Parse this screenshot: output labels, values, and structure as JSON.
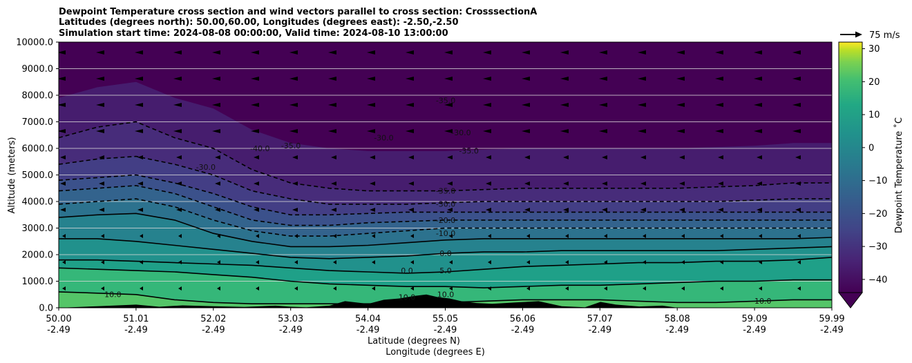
{
  "chart_data": {
    "type": "heatmap",
    "title_lines": [
      "Dewpoint Temperature cross section and wind vectors parallel to cross section: CrosssectionA",
      "Latitudes (degrees north): 50.00,60.00, Longitudes (degrees east): -2.50,-2.50",
      "Simulation start time: 2024-08-08 00:00:00, Valid time: 2024-08-10 13:00:00"
    ],
    "ylabel": "Altitude (meters)",
    "xlabel_lat": "Latitude (degrees N)",
    "xlabel_lon": "Longitude (degrees E)",
    "ylim": [
      0,
      10000
    ],
    "y_ticks": [
      "0.0",
      "1000.0",
      "2000.0",
      "3000.0",
      "4000.0",
      "5000.0",
      "6000.0",
      "7000.0",
      "8000.0",
      "9000.0",
      "10000.0"
    ],
    "x_ticks_lat": [
      "50.00",
      "51.01",
      "52.02",
      "53.03",
      "54.04",
      "55.05",
      "56.06",
      "57.07",
      "58.08",
      "59.09",
      "59.99"
    ],
    "x_ticks_lon": [
      "-2.49",
      "-2.49",
      "-2.49",
      "-2.49",
      "-2.49",
      "-2.49",
      "-2.49",
      "-2.49",
      "-2.49",
      "-2.49",
      "-2.49"
    ],
    "xlim": [
      50.0,
      59.99
    ],
    "colorbar": {
      "label": "Dewpoint Temperature ˚C",
      "range": [
        -44,
        32
      ],
      "ticks": [
        "30",
        "20",
        "10",
        "0",
        "−10",
        "−20",
        "−30",
        "−40"
      ],
      "tick_values": [
        30,
        20,
        10,
        0,
        -10,
        -20,
        -30,
        -40
      ],
      "extend": "min",
      "colormap": "viridis"
    },
    "wind_reference": {
      "label": "75 m/s"
    },
    "contour_labels": [
      {
        "text": "-35.0",
        "lat": 55.0,
        "alt": 7700
      },
      {
        "text": "-30.0",
        "lat": 55.2,
        "alt": 6500
      },
      {
        "text": "-40.0",
        "lat": 52.6,
        "alt": 5900
      },
      {
        "text": "-35.0",
        "lat": 53.0,
        "alt": 6000
      },
      {
        "text": "-30.0",
        "lat": 51.9,
        "alt": 5200
      },
      {
        "text": "-30.0",
        "lat": 54.2,
        "alt": 6300
      },
      {
        "text": "-35.0",
        "lat": 55.3,
        "alt": 5800
      },
      {
        "text": "-35.0",
        "lat": 55.0,
        "alt": 4300
      },
      {
        "text": "-30.0",
        "lat": 55.0,
        "alt": 3800
      },
      {
        "text": "-20.0",
        "lat": 55.0,
        "alt": 3200
      },
      {
        "text": "-10.0",
        "lat": 55.0,
        "alt": 2700
      },
      {
        "text": "0.0",
        "lat": 55.0,
        "alt": 1950
      },
      {
        "text": "5.0",
        "lat": 55.0,
        "alt": 1300
      },
      {
        "text": "0.0",
        "lat": 54.5,
        "alt": 1300
      },
      {
        "text": "10.0",
        "lat": 55.0,
        "alt": 400
      },
      {
        "text": "10.0",
        "lat": 54.5,
        "alt": 300
      },
      {
        "text": "10.0",
        "lat": 50.7,
        "alt": 400
      },
      {
        "text": "10.0",
        "lat": 59.1,
        "alt": 150
      }
    ],
    "solid_contours": [
      {
        "name": "10.0",
        "alt": [
          600,
          550,
          500,
          300,
          200,
          150,
          150,
          150,
          150,
          150,
          200,
          250,
          300,
          300,
          300,
          250,
          200,
          200,
          250,
          300,
          300
        ]
      },
      {
        "name": "5.0",
        "alt": [
          1500,
          1450,
          1400,
          1350,
          1250,
          1150,
          1000,
          900,
          850,
          800,
          800,
          750,
          800,
          850,
          850,
          900,
          950,
          1000,
          1000,
          1050,
          1050
        ]
      },
      {
        "name": "0.0",
        "alt": [
          1800,
          1800,
          1750,
          1700,
          1650,
          1600,
          1500,
          1400,
          1350,
          1300,
          1350,
          1450,
          1550,
          1600,
          1650,
          1700,
          1700,
          1750,
          1750,
          1800,
          1900
        ]
      },
      {
        "name": "-5.0",
        "alt": [
          2600,
          2600,
          2500,
          2350,
          2200,
          2050,
          1900,
          1850,
          1900,
          1950,
          2050,
          2100,
          2100,
          2150,
          2150,
          2150,
          2150,
          2150,
          2200,
          2250,
          2300
        ]
      },
      {
        "name": "-10.0",
        "alt": [
          3400,
          3500,
          3550,
          3300,
          2800,
          2500,
          2300,
          2300,
          2350,
          2450,
          2550,
          2600,
          2600,
          2600,
          2600,
          2600,
          2600,
          2600,
          2600,
          2600,
          2650
        ]
      }
    ],
    "dashed_contours": [
      {
        "name": "-15.0",
        "alt": [
          3900,
          4000,
          4100,
          3800,
          3300,
          2900,
          2700,
          2700,
          2800,
          2900,
          3000,
          3000,
          3000,
          3000,
          3000,
          3000,
          3000,
          3000,
          3000,
          3000,
          3000
        ]
      },
      {
        "name": "-20.0",
        "alt": [
          4400,
          4500,
          4600,
          4300,
          3800,
          3300,
          3100,
          3100,
          3200,
          3250,
          3300,
          3300,
          3300,
          3300,
          3300,
          3300,
          3300,
          3300,
          3300,
          3300,
          3300
        ]
      },
      {
        "name": "-25.0",
        "alt": [
          4800,
          4900,
          5000,
          4700,
          4300,
          3800,
          3500,
          3500,
          3550,
          3600,
          3600,
          3600,
          3600,
          3600,
          3600,
          3600,
          3600,
          3600,
          3600,
          3600,
          3600
        ]
      },
      {
        "name": "-30.0",
        "alt": [
          5400,
          5600,
          5700,
          5400,
          5000,
          4400,
          4100,
          3900,
          3900,
          3900,
          3950,
          4000,
          4000,
          4000,
          4000,
          4000,
          4000,
          4000,
          4050,
          4100,
          4100
        ]
      },
      {
        "name": "-35.0",
        "alt": [
          6400,
          6800,
          7000,
          6400,
          6000,
          5200,
          4700,
          4500,
          4400,
          4400,
          4400,
          4450,
          4500,
          4500,
          4500,
          4500,
          4500,
          4550,
          4600,
          4700,
          4700
        ]
      }
    ],
    "terrain": {
      "lat": [
        50.0,
        50.5,
        51.0,
        51.3,
        51.6,
        52.0,
        52.4,
        52.8,
        53.0,
        53.2,
        53.5,
        53.7,
        54.0,
        54.2,
        54.4,
        54.6,
        54.75,
        54.9,
        55.05,
        55.2,
        55.4,
        55.6,
        55.9,
        56.2,
        56.5,
        56.8,
        57.0,
        57.2,
        57.5,
        57.8,
        58.0,
        59.99
      ],
      "alt": [
        0,
        60,
        120,
        40,
        90,
        60,
        30,
        80,
        40,
        20,
        80,
        250,
        150,
        300,
        350,
        450,
        500,
        400,
        350,
        250,
        180,
        150,
        200,
        250,
        60,
        20,
        220,
        120,
        50,
        80,
        0,
        0
      ]
    }
  }
}
